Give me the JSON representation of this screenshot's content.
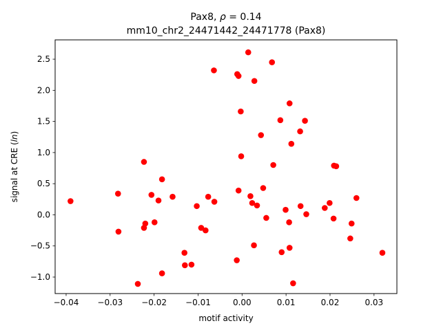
{
  "chart_data": {
    "type": "scatter",
    "title_line1_prefix": "Pax8, ",
    "title_line1_symbol": "ρ",
    "title_line1_suffix": " = 0.14",
    "title_line2": "mm10_chr2_24471442_24471778 (Pax8)",
    "xlabel": "motif activity",
    "ylabel_prefix": "signal at CRE (",
    "ylabel_symbol": "ln",
    "ylabel_suffix": ")",
    "xlim": [
      -0.0425,
      0.0352
    ],
    "ylim": [
      -1.265,
      2.81
    ],
    "xticks": [
      {
        "value": -0.04,
        "label": "−0.04"
      },
      {
        "value": -0.03,
        "label": "−0.03"
      },
      {
        "value": -0.02,
        "label": "−0.02"
      },
      {
        "value": -0.01,
        "label": "−0.01"
      },
      {
        "value": 0.0,
        "label": "0.00"
      },
      {
        "value": 0.01,
        "label": "0.01"
      },
      {
        "value": 0.02,
        "label": "0.02"
      },
      {
        "value": 0.03,
        "label": "0.03"
      }
    ],
    "yticks": [
      {
        "value": -1.0,
        "label": "−1.0"
      },
      {
        "value": -0.5,
        "label": "−0.5"
      },
      {
        "value": 0.0,
        "label": "0.0"
      },
      {
        "value": 0.5,
        "label": "0.5"
      },
      {
        "value": 1.0,
        "label": "1.0"
      },
      {
        "value": 1.5,
        "label": "1.5"
      },
      {
        "value": 2.0,
        "label": "2.0"
      },
      {
        "value": 2.5,
        "label": "2.5"
      }
    ],
    "grid": false,
    "marker_color": "#ff0000",
    "points": [
      {
        "x": -0.039,
        "y": 0.22
      },
      {
        "x": -0.0282,
        "y": 0.34
      },
      {
        "x": -0.0281,
        "y": -0.27
      },
      {
        "x": -0.0237,
        "y": -1.11
      },
      {
        "x": -0.0223,
        "y": 0.85
      },
      {
        "x": -0.0223,
        "y": -0.21
      },
      {
        "x": -0.022,
        "y": -0.14
      },
      {
        "x": -0.0206,
        "y": 0.32
      },
      {
        "x": -0.0199,
        "y": -0.12
      },
      {
        "x": -0.019,
        "y": 0.23
      },
      {
        "x": -0.0182,
        "y": 0.57
      },
      {
        "x": -0.0182,
        "y": -0.94
      },
      {
        "x": -0.0158,
        "y": 0.29
      },
      {
        "x": -0.0131,
        "y": -0.61
      },
      {
        "x": -0.013,
        "y": -0.81
      },
      {
        "x": -0.0115,
        "y": -0.8
      },
      {
        "x": -0.0103,
        "y": 0.14
      },
      {
        "x": -0.0093,
        "y": -0.21
      },
      {
        "x": -0.0083,
        "y": -0.25
      },
      {
        "x": -0.0077,
        "y": 0.29
      },
      {
        "x": -0.0064,
        "y": 2.32
      },
      {
        "x": -0.0063,
        "y": 0.21
      },
      {
        "x": -0.0011,
        "y": 2.26
      },
      {
        "x": -0.0008,
        "y": 2.23
      },
      {
        "x": -0.0008,
        "y": 0.39
      },
      {
        "x": -0.0012,
        "y": -0.73
      },
      {
        "x": -0.0003,
        "y": 1.66
      },
      {
        "x": -0.0002,
        "y": 0.94
      },
      {
        "x": 0.0014,
        "y": 2.61
      },
      {
        "x": 0.0019,
        "y": 0.3
      },
      {
        "x": 0.0023,
        "y": 0.19
      },
      {
        "x": 0.0027,
        "y": -0.49
      },
      {
        "x": 0.0028,
        "y": 2.15
      },
      {
        "x": 0.0034,
        "y": 0.15
      },
      {
        "x": 0.0043,
        "y": 1.28
      },
      {
        "x": 0.0048,
        "y": 0.43
      },
      {
        "x": 0.0055,
        "y": -0.05
      },
      {
        "x": 0.0068,
        "y": 2.45
      },
      {
        "x": 0.0071,
        "y": 0.8
      },
      {
        "x": 0.0087,
        "y": 1.52
      },
      {
        "x": 0.009,
        "y": -0.6
      },
      {
        "x": 0.0099,
        "y": 0.08
      },
      {
        "x": 0.0108,
        "y": 1.79
      },
      {
        "x": 0.0107,
        "y": -0.12
      },
      {
        "x": 0.0108,
        "y": -0.53
      },
      {
        "x": 0.0112,
        "y": 1.14
      },
      {
        "x": 0.0116,
        "y": -1.1
      },
      {
        "x": 0.0132,
        "y": 1.34
      },
      {
        "x": 0.0133,
        "y": 0.14
      },
      {
        "x": 0.0143,
        "y": 1.51
      },
      {
        "x": 0.0146,
        "y": 0.01
      },
      {
        "x": 0.0188,
        "y": 0.11
      },
      {
        "x": 0.0199,
        "y": 0.19
      },
      {
        "x": 0.0208,
        "y": -0.06
      },
      {
        "x": 0.0209,
        "y": 0.79
      },
      {
        "x": 0.0214,
        "y": 0.78
      },
      {
        "x": 0.0246,
        "y": -0.38
      },
      {
        "x": 0.0249,
        "y": -0.14
      },
      {
        "x": 0.026,
        "y": 0.27
      },
      {
        "x": 0.0319,
        "y": -0.61
      }
    ]
  }
}
